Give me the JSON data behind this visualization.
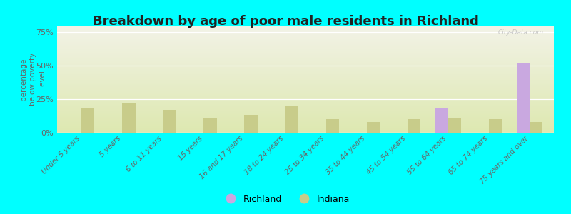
{
  "title": "Breakdown by age of poor male residents in Richland",
  "categories": [
    "Under 5 years",
    "5 years",
    "6 to 11 years",
    "15 years",
    "16 and 17 years",
    "18 to 24 years",
    "25 to 34 years",
    "35 to 44 years",
    "45 to 54 years",
    "55 to 64 years",
    "65 to 74 years",
    "75 years and over"
  ],
  "richland_values": [
    null,
    null,
    null,
    null,
    null,
    null,
    null,
    null,
    null,
    18.5,
    null,
    52.5
  ],
  "indiana_values": [
    18.2,
    22.5,
    17.0,
    11.0,
    13.5,
    20.0,
    10.0,
    8.0,
    10.0,
    11.0,
    10.0,
    8.0
  ],
  "richland_color": "#c9a8e0",
  "indiana_color": "#c8cc8a",
  "background_color": "#00ffff",
  "gradient_top": "#f2f2e6",
  "gradient_bottom": "#dde8b0",
  "ylabel": "percentage\nbelow poverty\nlevel",
  "ylim": [
    0,
    80
  ],
  "yticks": [
    0,
    25,
    50,
    75
  ],
  "ytick_labels": [
    "0%",
    "25%",
    "50%",
    "75%"
  ],
  "bar_width": 0.32,
  "title_fontsize": 13,
  "watermark": "City-Data.com"
}
